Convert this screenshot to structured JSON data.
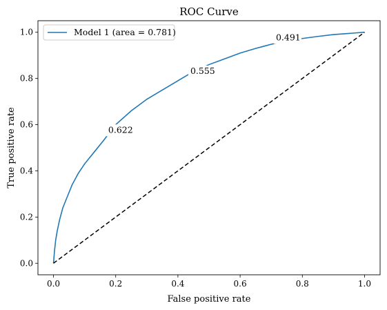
{
  "chart_data": {
    "type": "line",
    "title": "ROC Curve",
    "xlabel": "False positive rate",
    "ylabel": "True positive rate",
    "xlim": [
      -0.05,
      1.05
    ],
    "ylim": [
      -0.05,
      1.05
    ],
    "x_ticks": [
      "0.0",
      "0.2",
      "0.4",
      "0.6",
      "0.8",
      "1.0"
    ],
    "y_ticks": [
      "0.0",
      "0.2",
      "0.4",
      "0.6",
      "0.8",
      "1.0"
    ],
    "legend_position": "top-left",
    "grid": false,
    "series": [
      {
        "name": "Model 1 (area = 0.781)",
        "color": "#1f77b4",
        "style": "solid",
        "x": [
          0.0,
          0.003,
          0.007,
          0.012,
          0.02,
          0.03,
          0.045,
          0.06,
          0.08,
          0.1,
          0.13,
          0.16,
          0.2,
          0.25,
          0.3,
          0.35,
          0.4,
          0.45,
          0.5,
          0.55,
          0.6,
          0.65,
          0.7,
          0.75,
          0.8,
          0.85,
          0.9,
          0.95,
          1.0
        ],
        "y": [
          0.0,
          0.05,
          0.1,
          0.14,
          0.19,
          0.24,
          0.29,
          0.34,
          0.39,
          0.43,
          0.48,
          0.53,
          0.6,
          0.66,
          0.71,
          0.75,
          0.79,
          0.83,
          0.86,
          0.885,
          0.91,
          0.93,
          0.948,
          0.962,
          0.973,
          0.982,
          0.99,
          0.995,
          1.0
        ]
      },
      {
        "name": "",
        "color": "#000000",
        "style": "dashed",
        "x": [
          0.0,
          1.0
        ],
        "y": [
          0.0,
          1.0
        ]
      }
    ],
    "annotations": [
      {
        "text": "0.622",
        "x": 0.176,
        "y": 0.565
      },
      {
        "text": "0.555",
        "x": 0.44,
        "y": 0.82
      },
      {
        "text": "0.491",
        "x": 0.715,
        "y": 0.965
      }
    ]
  }
}
